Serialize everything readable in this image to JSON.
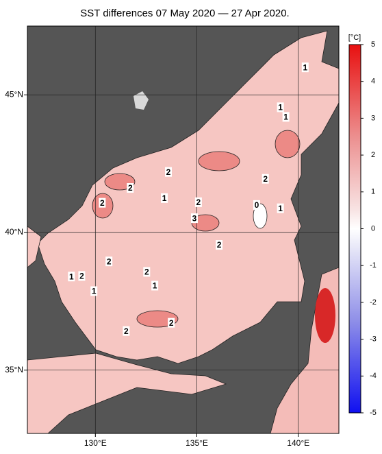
{
  "map": {
    "title": "SST differences 07 May 2020 — 27 Apr 2020.",
    "xlim": [
      126.65,
      142.0
    ],
    "ylim": [
      32.7,
      47.5
    ],
    "xticks": [
      {
        "value": 130,
        "label": "130°E"
      },
      {
        "value": 135,
        "label": "135°E"
      },
      {
        "value": 140,
        "label": "140°E"
      }
    ],
    "yticks": [
      {
        "value": 35,
        "label": "35°N"
      },
      {
        "value": 40,
        "label": "40°N"
      },
      {
        "value": 45,
        "label": "45°N"
      }
    ],
    "grid": true,
    "colorbar": {
      "label": "[°C]",
      "lim": [
        -5,
        5
      ],
      "ticks": [
        -5,
        -4,
        -3,
        -2,
        -1,
        0,
        1,
        2,
        3,
        4,
        5
      ]
    },
    "contour_labels": [
      {
        "label": "1",
        "lon": 140.34,
        "lat": 46.0
      },
      {
        "label": "1",
        "lon": 139.12,
        "lat": 44.55
      },
      {
        "label": "1",
        "lon": 139.39,
        "lat": 44.2
      },
      {
        "label": "2",
        "lon": 133.6,
        "lat": 42.2
      },
      {
        "label": "2",
        "lon": 131.72,
        "lat": 41.62
      },
      {
        "label": "2",
        "lon": 138.38,
        "lat": 41.95
      },
      {
        "label": "2",
        "lon": 130.34,
        "lat": 41.08
      },
      {
        "label": "1",
        "lon": 133.4,
        "lat": 41.25
      },
      {
        "label": "2",
        "lon": 135.08,
        "lat": 41.1
      },
      {
        "label": "0",
        "lon": 137.95,
        "lat": 41.0
      },
      {
        "label": "1",
        "lon": 139.12,
        "lat": 40.88
      },
      {
        "label": "3",
        "lon": 134.88,
        "lat": 40.52
      },
      {
        "label": "2",
        "lon": 136.1,
        "lat": 39.55
      },
      {
        "label": "2",
        "lon": 130.67,
        "lat": 38.95
      },
      {
        "label": "1",
        "lon": 128.82,
        "lat": 38.4
      },
      {
        "label": "2",
        "lon": 129.33,
        "lat": 38.42
      },
      {
        "label": "2",
        "lon": 132.53,
        "lat": 38.57
      },
      {
        "label": "1",
        "lon": 132.93,
        "lat": 38.07
      },
      {
        "label": "1",
        "lon": 129.93,
        "lat": 37.87
      },
      {
        "label": "2",
        "lon": 133.74,
        "lat": 36.72
      },
      {
        "label": "2",
        "lon": 131.52,
        "lat": 36.42
      }
    ]
  }
}
